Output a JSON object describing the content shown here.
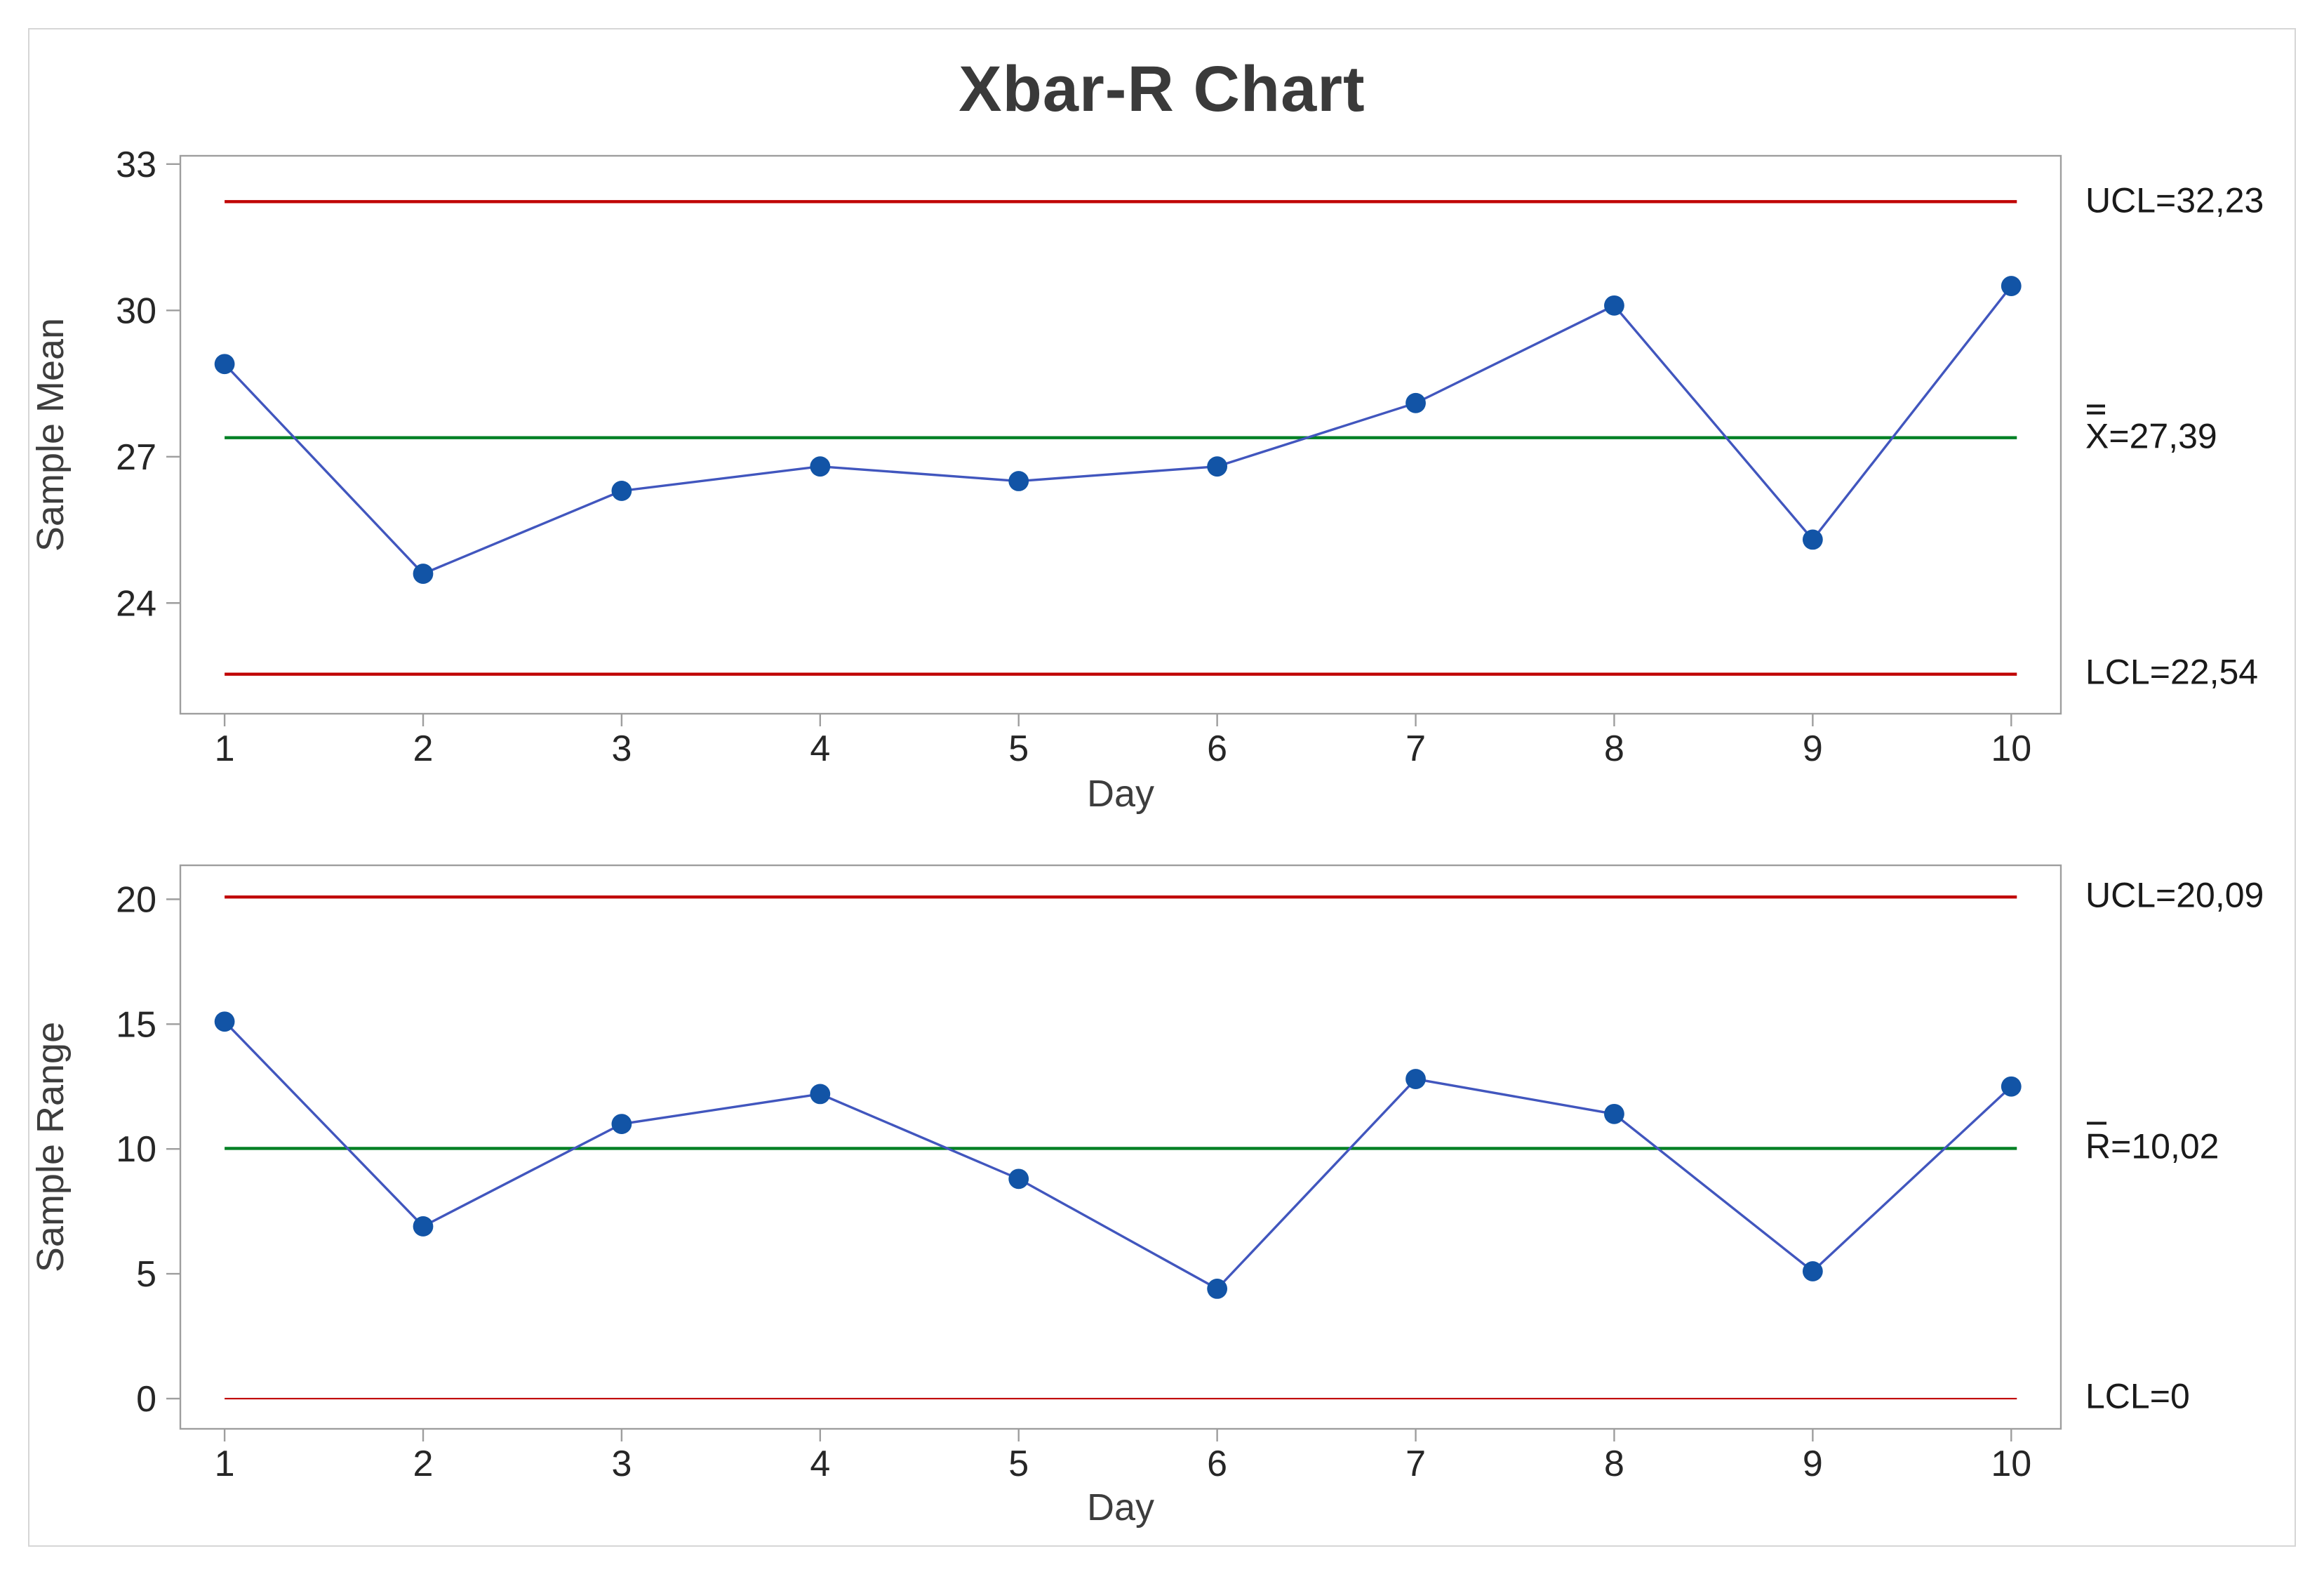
{
  "figure": {
    "title": "Xbar-R Chart"
  },
  "colors": {
    "marker_blue": "#1254a6",
    "line_blue": "#4156be",
    "limit_red": "#c00000",
    "center_green": "#008024",
    "axis_gray": "#9e9e9e",
    "tick_text": "#262626",
    "axis_title_text": "#3d3d3d",
    "annotation_text": "#1a1a1a",
    "title_text": "#3a3a3a",
    "frame_gray": "#d6d6d6"
  },
  "chart_data": [
    {
      "id": "xbar",
      "type": "line",
      "ylabel": "Sample Mean",
      "xlabel": "Day",
      "x": [
        1,
        2,
        3,
        4,
        5,
        6,
        7,
        8,
        9,
        10
      ],
      "xticks": [
        "1",
        "2",
        "3",
        "4",
        "5",
        "6",
        "7",
        "8",
        "9",
        "10"
      ],
      "values": [
        28.9,
        24.6,
        26.3,
        26.8,
        26.5,
        26.8,
        28.1,
        30.1,
        25.3,
        30.5
      ],
      "center": 27.39,
      "ucl": 32.23,
      "lcl": 22.54,
      "yticks": [
        {
          "v": 33,
          "label": "33"
        },
        {
          "v": 30,
          "label": "30"
        },
        {
          "v": 27,
          "label": "27"
        },
        {
          "v": 24,
          "label": "24"
        }
      ],
      "ylim": [
        21.73,
        33.17
      ],
      "xlim": [
        0.777,
        10.25
      ],
      "grid": false,
      "annotations": [
        {
          "symbol": "UCL",
          "overline": "none",
          "rest": "=32,23",
          "v": 32.23
        },
        {
          "symbol": "X",
          "overline": "double",
          "rest": "=27,39",
          "v": 27.39
        },
        {
          "symbol": "LCL",
          "overline": "none",
          "rest": "=22,54",
          "v": 22.54
        }
      ]
    },
    {
      "id": "range",
      "type": "line",
      "ylabel": "Sample Range",
      "xlabel": "Day",
      "x": [
        1,
        2,
        3,
        4,
        5,
        6,
        7,
        8,
        9,
        10
      ],
      "xticks": [
        "1",
        "2",
        "3",
        "4",
        "5",
        "6",
        "7",
        "8",
        "9",
        "10"
      ],
      "values": [
        15.1,
        6.9,
        11.0,
        12.2,
        8.8,
        4.4,
        12.8,
        11.4,
        5.1,
        12.5
      ],
      "center": 10.02,
      "ucl": 20.09,
      "lcl": 0,
      "yticks": [
        {
          "v": 20,
          "label": "20"
        },
        {
          "v": 15,
          "label": "15"
        },
        {
          "v": 10,
          "label": "10"
        },
        {
          "v": 5,
          "label": "5"
        },
        {
          "v": 0,
          "label": "0"
        }
      ],
      "ylim": [
        -1.21,
        21.36
      ],
      "xlim": [
        0.777,
        10.25
      ],
      "grid": false,
      "annotations": [
        {
          "symbol": "UCL",
          "overline": "none",
          "rest": "=20,09",
          "v": 20.09
        },
        {
          "symbol": "R",
          "overline": "single",
          "rest": "=10,02",
          "v": 10.02
        },
        {
          "symbol": "LCL",
          "overline": "none",
          "rest": "=0",
          "v": 0
        }
      ]
    }
  ]
}
